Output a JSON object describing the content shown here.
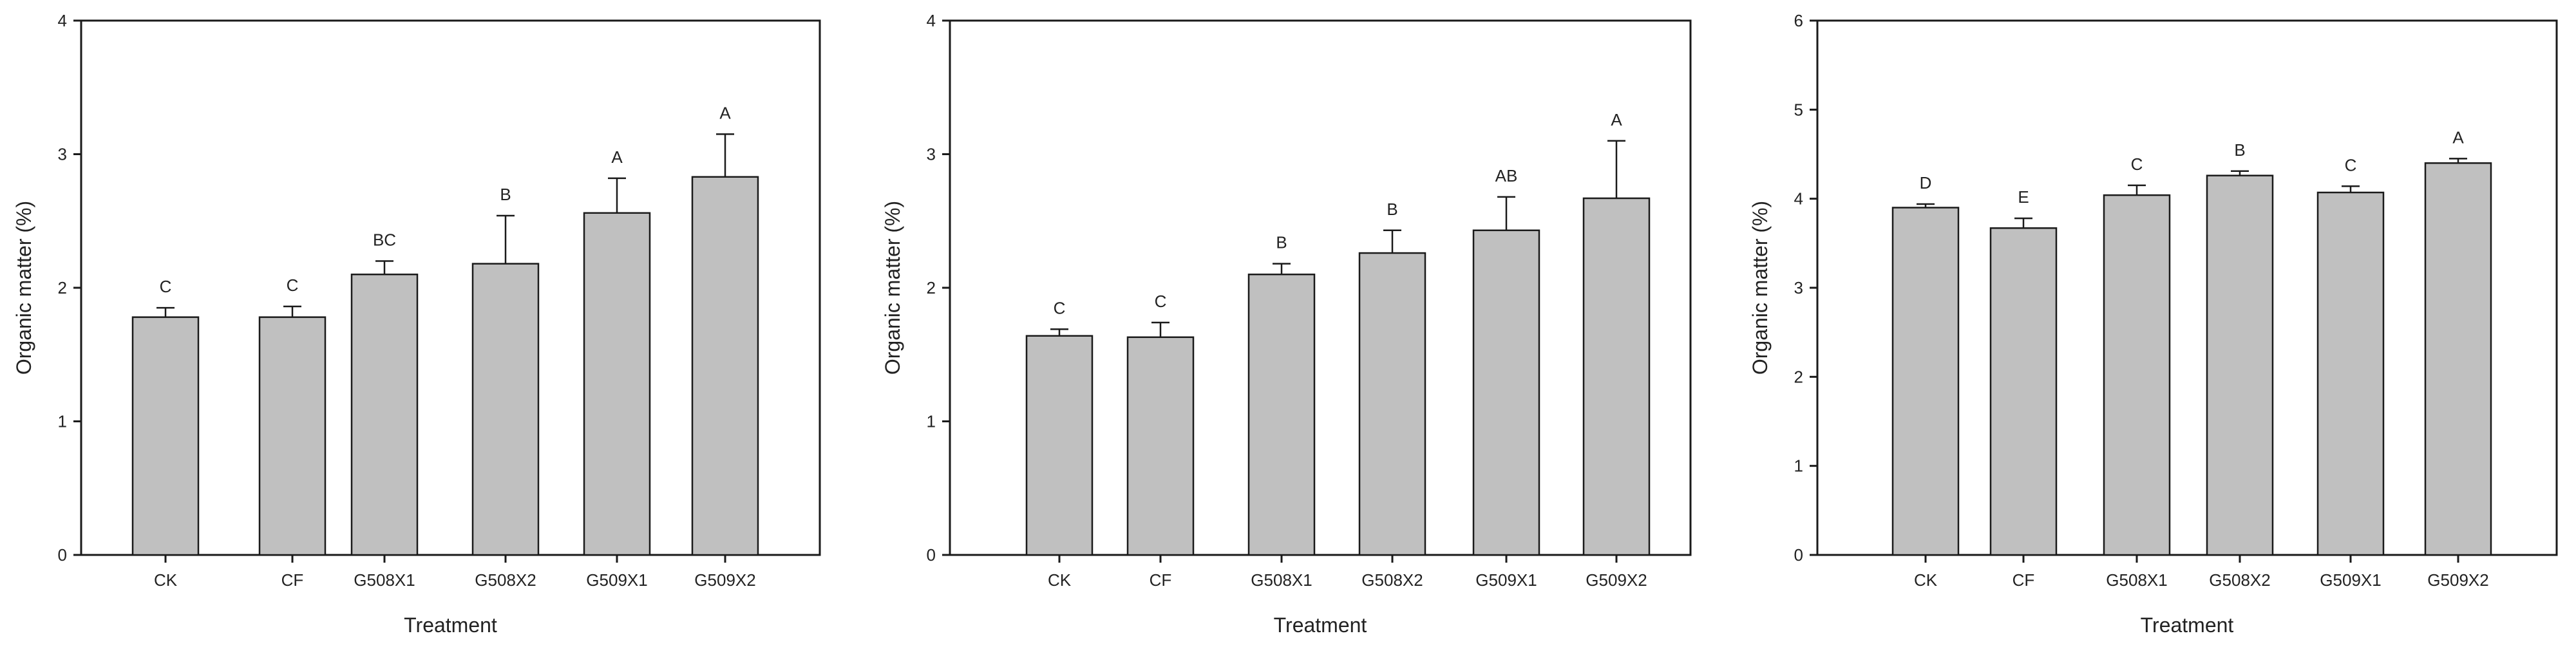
{
  "colors": {
    "bar_fill": "#c0c0c0",
    "bar_stroke": "#1a1a1a",
    "axis": "#1a1a1a",
    "background": "#ffffff"
  },
  "chart_data": [
    {
      "type": "bar",
      "title": "",
      "xlabel": "Treatment",
      "ylabel": "Organic matter (%)",
      "ylim": [
        0,
        4
      ],
      "yticks": [
        "0",
        "1",
        "2",
        "3",
        "4"
      ],
      "grid": false,
      "categories": [
        "CK",
        "CF",
        "G508X1",
        "G508X2",
        "G509X1",
        "G509X2"
      ],
      "values": [
        1.78,
        1.78,
        2.1,
        2.18,
        2.56,
        2.83
      ],
      "errors": [
        0.07,
        0.08,
        0.1,
        0.36,
        0.26,
        0.32
      ],
      "letters": [
        "C",
        "C",
        "BC",
        "B",
        "A",
        "A"
      ]
    },
    {
      "type": "bar",
      "title": "",
      "xlabel": "Treatment",
      "ylabel": "Organic matter (%)",
      "ylim": [
        0,
        4
      ],
      "yticks": [
        "0",
        "1",
        "2",
        "3",
        "4"
      ],
      "grid": false,
      "categories": [
        "CK",
        "CF",
        "G508X1",
        "G508X2",
        "G509X1",
        "G509X2"
      ],
      "values": [
        1.64,
        1.63,
        2.1,
        2.26,
        2.43,
        2.67
      ],
      "errors": [
        0.05,
        0.11,
        0.08,
        0.17,
        0.25,
        0.43
      ],
      "letters": [
        "C",
        "C",
        "B",
        "B",
        "AB",
        "A"
      ]
    },
    {
      "type": "bar",
      "title": "",
      "xlabel": "Treatment",
      "ylabel": "Organic matter (%)",
      "ylim": [
        0,
        6
      ],
      "yticks": [
        "0",
        "1",
        "2",
        "3",
        "4",
        "5",
        "6"
      ],
      "grid": false,
      "categories": [
        "CK",
        "CF",
        "G508X1",
        "G508X2",
        "G509X1",
        "G509X2"
      ],
      "values": [
        3.9,
        3.67,
        4.04,
        4.26,
        4.07,
        4.4
      ],
      "errors": [
        0.04,
        0.11,
        0.11,
        0.05,
        0.07,
        0.05
      ],
      "letters": [
        "D",
        "E",
        "C",
        "B",
        "C",
        "A"
      ]
    }
  ]
}
